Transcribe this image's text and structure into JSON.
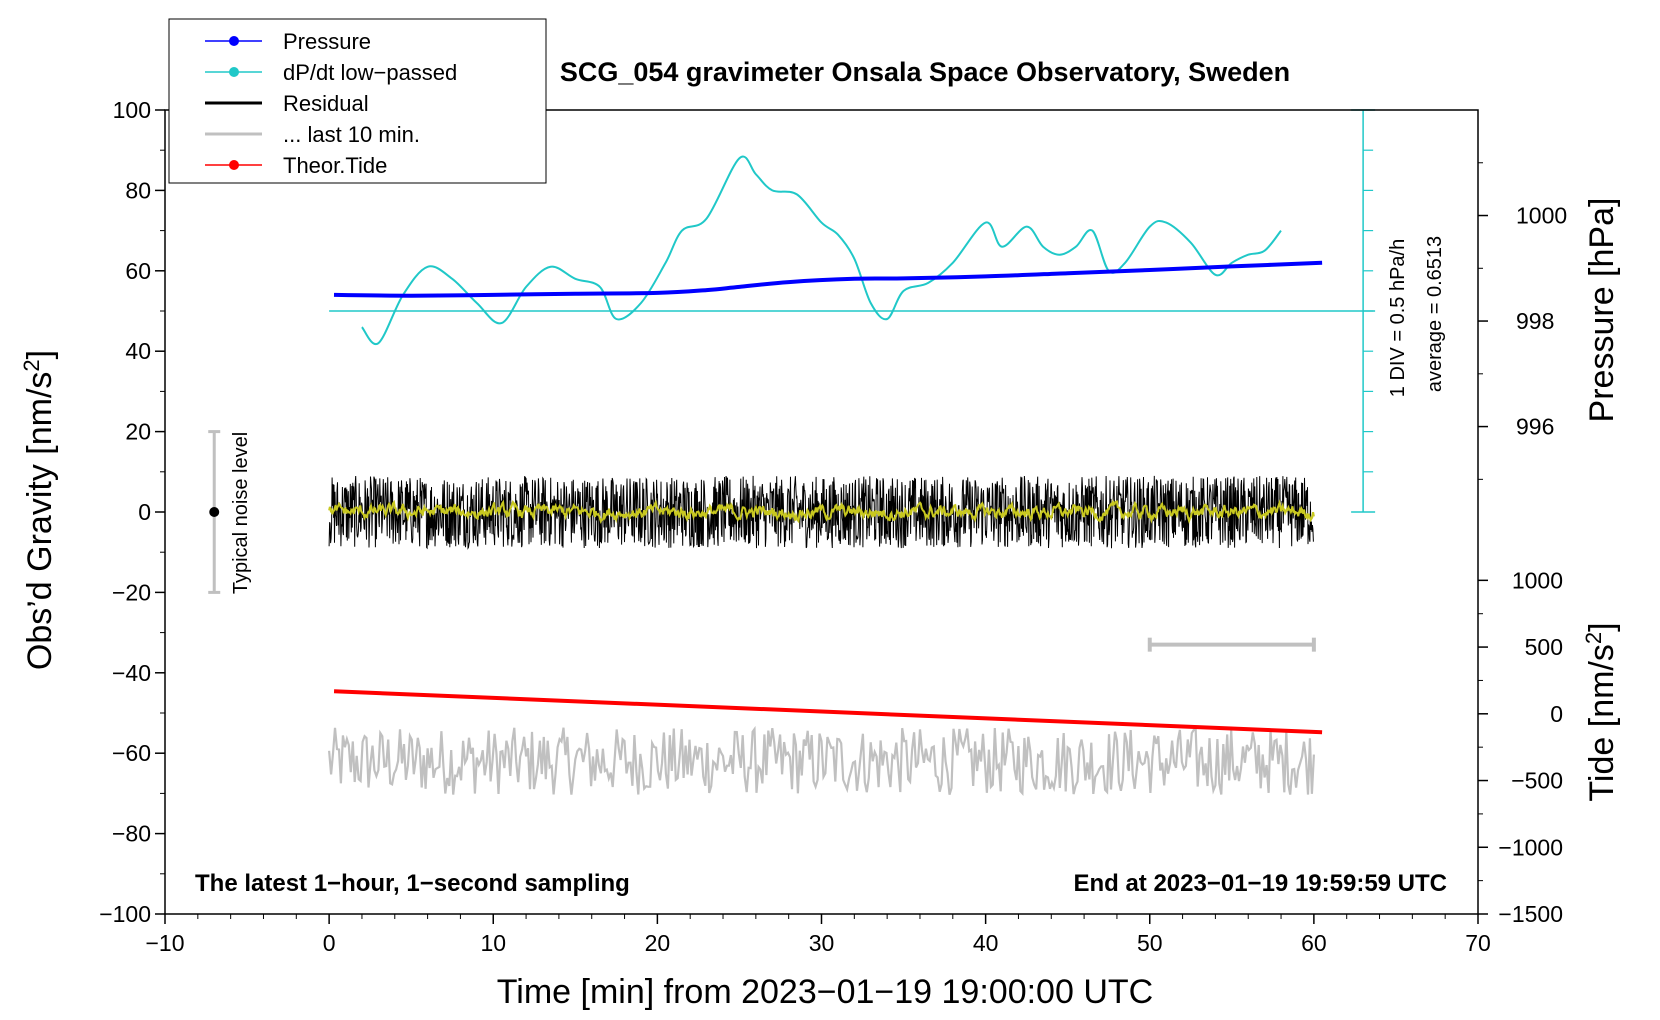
{
  "chart_data": {
    "type": "line",
    "title": "SCG_054 gravimeter Onsala Space Observatory, Sweden",
    "xlabel": "Time [min] from 2023−01−19 19:00:00 UTC",
    "ylabel_left": "Obs’d Gravity [nm/s",
    "ylabel_left_sup": "2",
    "ylabel_left_end": "]",
    "ylabel_right_top": "Pressure [hPa]",
    "ylabel_right_bottom": "Tide [nm/s",
    "ylabel_right_bottom_sup": "2",
    "ylabel_right_bottom_end": "]",
    "xlim": [
      -10,
      70
    ],
    "ylim": [
      -100,
      100
    ],
    "x_ticks": [
      -10,
      0,
      10,
      20,
      30,
      40,
      50,
      60,
      70
    ],
    "x_tick_labels": [
      "−10",
      "0",
      "10",
      "20",
      "30",
      "40",
      "50",
      "60",
      "70"
    ],
    "y_ticks": [
      -100,
      -80,
      -60,
      -40,
      -20,
      0,
      20,
      40,
      60,
      80,
      100
    ],
    "y_tick_labels": [
      "−100",
      "−80",
      "−60",
      "−40",
      "−20",
      "0",
      "20",
      "40",
      "60",
      "80",
      "100"
    ],
    "pressure_axis": {
      "ticks": [
        996,
        998,
        1000
      ],
      "tick_labels": [
        "996",
        "998",
        "1000"
      ],
      "range": [
        994,
        1002
      ]
    },
    "tide_axis": {
      "ticks": [
        -1500,
        -1000,
        -500,
        0,
        500,
        1000
      ],
      "tick_labels": [
        "−1500",
        "−1000",
        "−500",
        "0",
        "500",
        "1000"
      ],
      "range": [
        -1500,
        1000
      ]
    },
    "annotations": {
      "bottom_left": "The latest 1−hour, 1−second sampling",
      "bottom_right": "End at 2023−01−19 19:59:59 UTC",
      "noise_label": "Typical noise level",
      "scale_label_1": "1 DIV = 0.5 hPa/h",
      "scale_label_2": "average = 0.6513"
    },
    "noise_bar": {
      "x": -7,
      "center": 0,
      "half_range": 20
    },
    "last10_bar": {
      "x_start": 50,
      "x_end": 60,
      "y": -33
    },
    "dpdt_scale": {
      "x": 63,
      "y_bottom": 0,
      "y_top": 100,
      "baseline_y": 50,
      "divisions": 10
    },
    "legend": [
      {
        "label": "Pressure",
        "color": "#0000ff",
        "marker": true
      },
      {
        "label": "dP/dt low−passed",
        "color": "#20c8c8",
        "marker": true
      },
      {
        "label": "Residual",
        "color": "#000000",
        "marker": false
      },
      {
        "label": "... last 10 min.",
        "color": "#c0c0c0",
        "marker": false
      },
      {
        "label": "Theor.Tide",
        "color": "#ff0000",
        "marker": true
      }
    ],
    "series": [
      {
        "name": "Pressure",
        "color": "#0000ff",
        "units": "nm/s2-plot",
        "x": [
          0.3,
          5,
          10,
          15,
          20,
          23,
          25,
          28,
          32,
          35,
          40,
          45,
          50,
          55,
          60.5
        ],
        "values": [
          54,
          53.8,
          54,
          54.3,
          54.5,
          55.2,
          56,
          57.2,
          58,
          58.1,
          58.6,
          59.4,
          60.2,
          61.1,
          62
        ]
      },
      {
        "name": "dP/dt low-passed",
        "color": "#20c8c8",
        "x": [
          2,
          3,
          4.5,
          6,
          7.5,
          9,
          10.5,
          12,
          13.5,
          15,
          16.5,
          17.5,
          19,
          20.5,
          21.5,
          23,
          25,
          26,
          27,
          28.5,
          30,
          31,
          32,
          33,
          34,
          35,
          36.5,
          38,
          40,
          41,
          42.5,
          43.5,
          44.5,
          45.5,
          46.5,
          47.5,
          48.5,
          50,
          51,
          52.5,
          54,
          55,
          56,
          57,
          58
        ],
        "values": [
          46,
          42,
          54,
          61,
          58,
          52,
          47,
          56,
          61,
          58,
          56,
          48,
          52,
          62,
          70,
          73,
          88,
          84,
          80,
          79,
          72,
          69,
          63,
          52,
          48,
          55,
          57,
          62,
          72,
          66,
          71,
          66,
          64,
          66,
          70,
          60,
          62,
          71,
          72,
          67,
          59,
          62,
          64,
          65,
          70
        ]
      },
      {
        "name": "Residual",
        "color": "#000000",
        "x_start": 0,
        "x_end": 60,
        "center": 0,
        "amplitude": 9
      },
      {
        "name": "Residual smoothed",
        "color": "#c8c820",
        "x_start": 0,
        "x_end": 60,
        "center": 0,
        "amplitude": 1.5
      },
      {
        "name": "... last 10 min.",
        "color": "#c0c0c0",
        "x_start": 0,
        "x_end": 60,
        "center": -62,
        "amplitude": 7
      },
      {
        "name": "Theor.Tide",
        "color": "#ff0000",
        "x": [
          0.3,
          60.5
        ],
        "values": [
          -44.6,
          -54.8
        ]
      }
    ]
  }
}
